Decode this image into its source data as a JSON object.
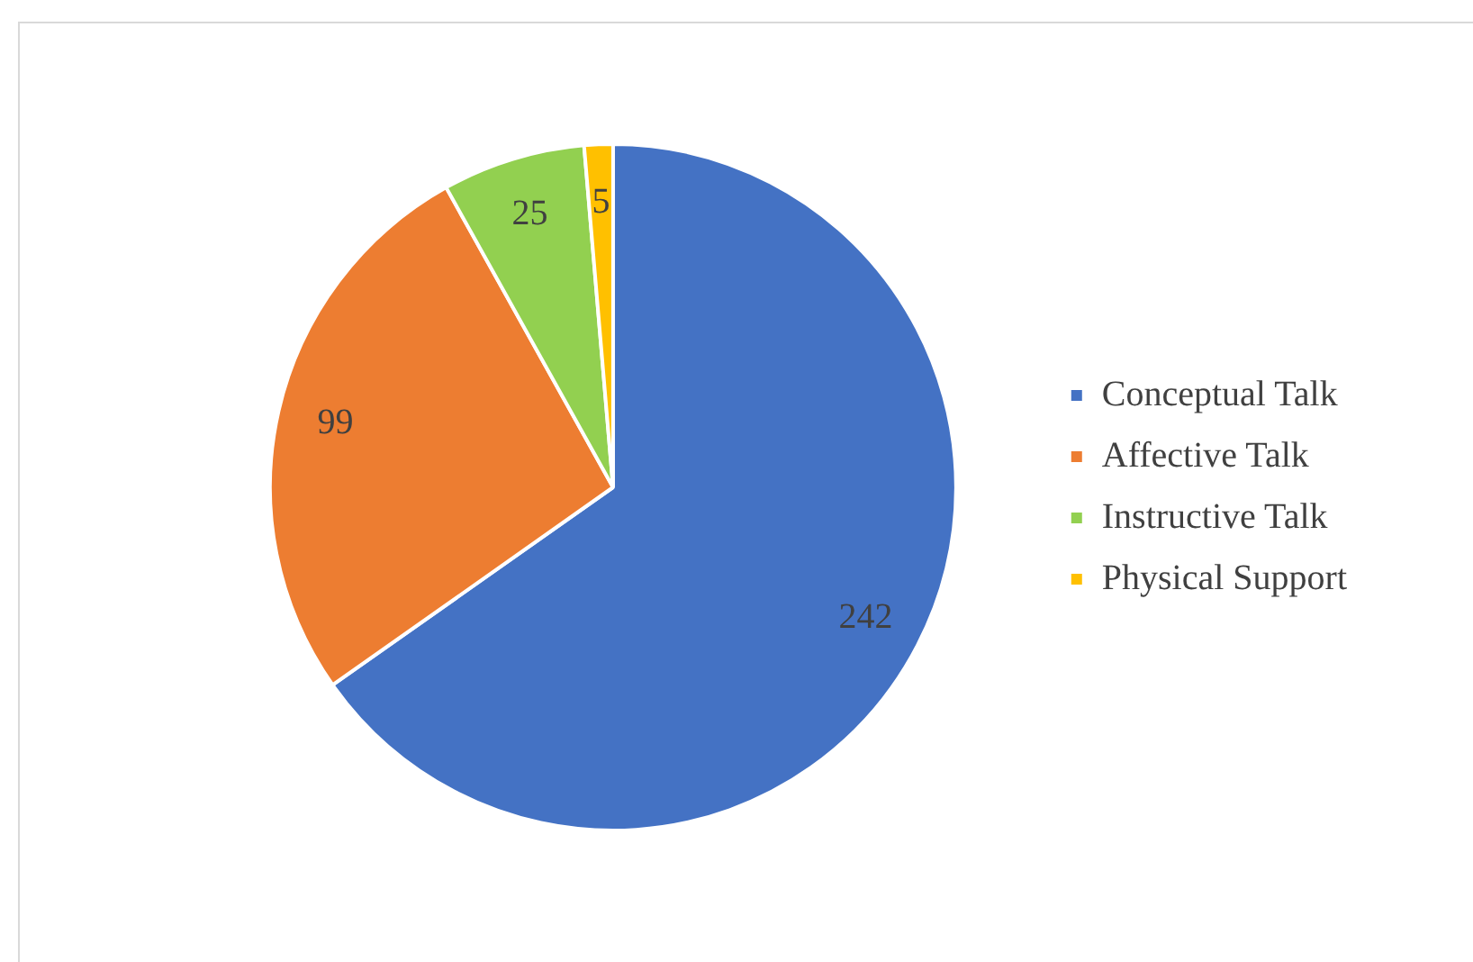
{
  "chart_data": {
    "type": "pie",
    "categories": [
      "Conceptual Talk",
      "Affective Talk",
      "Instructive Talk",
      "Physical Support"
    ],
    "values": [
      242,
      99,
      25,
      5
    ],
    "colors": [
      "#4472c4",
      "#ed7d31",
      "#92d050",
      "#ffc000"
    ],
    "data_labels": true,
    "legend": "right"
  }
}
